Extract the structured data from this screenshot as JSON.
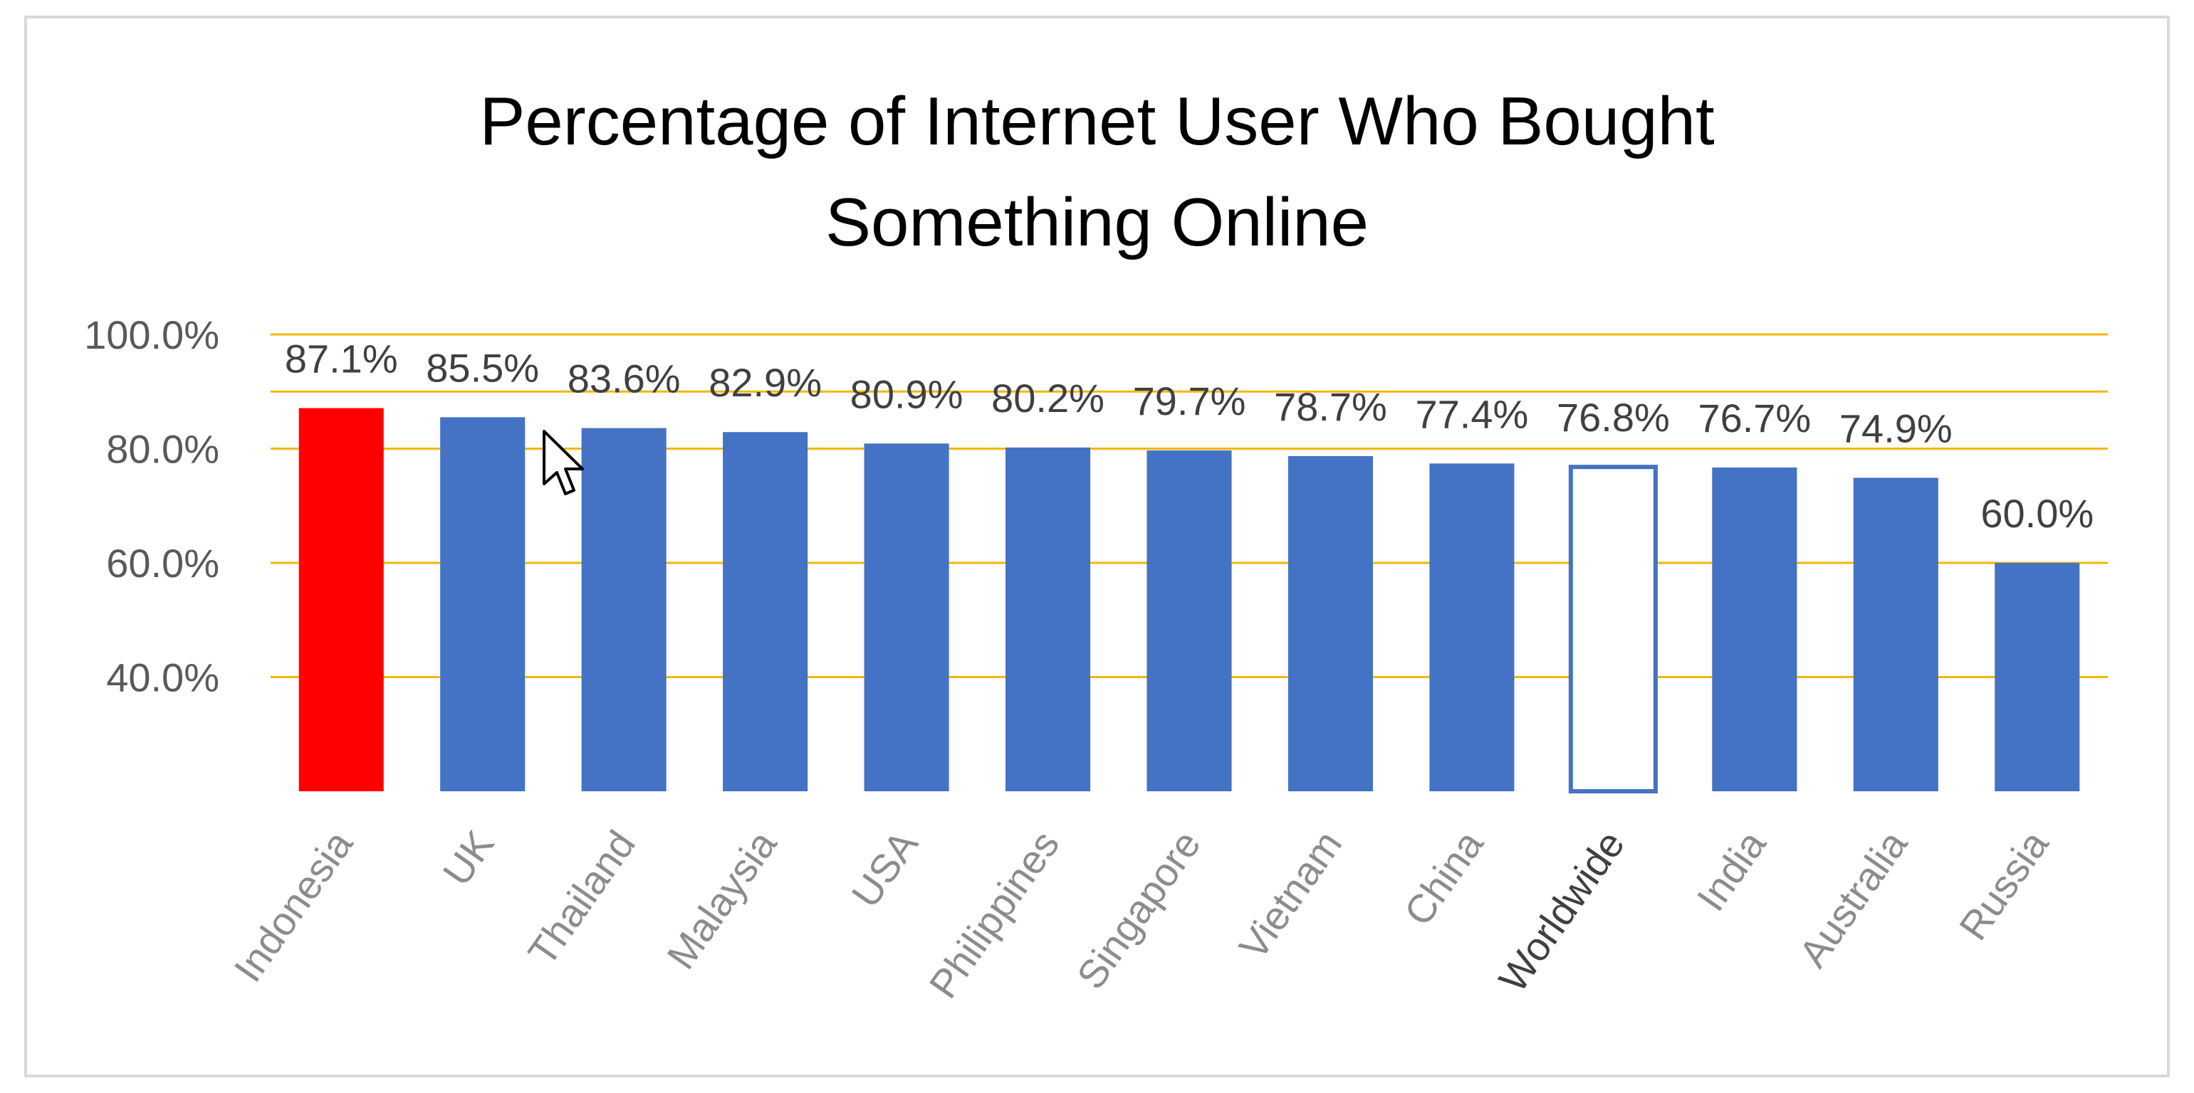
{
  "chart_data": {
    "type": "bar",
    "title": [
      "Percentage of Internet User Who Bought",
      "Something Online"
    ],
    "categories": [
      "Indonesia",
      "UK",
      "Thailand",
      "Malaysia",
      "USA",
      "Philippines",
      "Singapore",
      "Vietnam",
      "China",
      "Worldwide",
      "India",
      "Australia",
      "Russia"
    ],
    "values": [
      87.1,
      85.5,
      83.6,
      82.9,
      80.9,
      80.2,
      79.7,
      78.7,
      77.4,
      76.8,
      76.7,
      74.9,
      60.0
    ],
    "data_labels": [
      "87.1%",
      "85.5%",
      "83.6%",
      "82.9%",
      "80.9%",
      "80.2%",
      "79.7%",
      "78.7%",
      "77.4%",
      "76.8%",
      "76.7%",
      "74.9%",
      "60.0%"
    ],
    "y_ticks": [
      40,
      60,
      80,
      100
    ],
    "y_tick_labels": [
      "40.0%",
      "60.0%",
      "80.0%",
      "100.0%"
    ],
    "ylim": [
      20,
      100
    ],
    "grid": true,
    "xlabel": "",
    "ylabel": "",
    "colors": {
      "default_bar": "#4472c4",
      "highlight_bar": "#ff0000",
      "outline_bar_stroke": "#4472c4",
      "outline_bar_fill": "#ffffff",
      "gridline": "#f2b705"
    },
    "highlight": "Indonesia",
    "outlined": "Worldwide"
  },
  "pointer": "arrow-cursor-icon"
}
